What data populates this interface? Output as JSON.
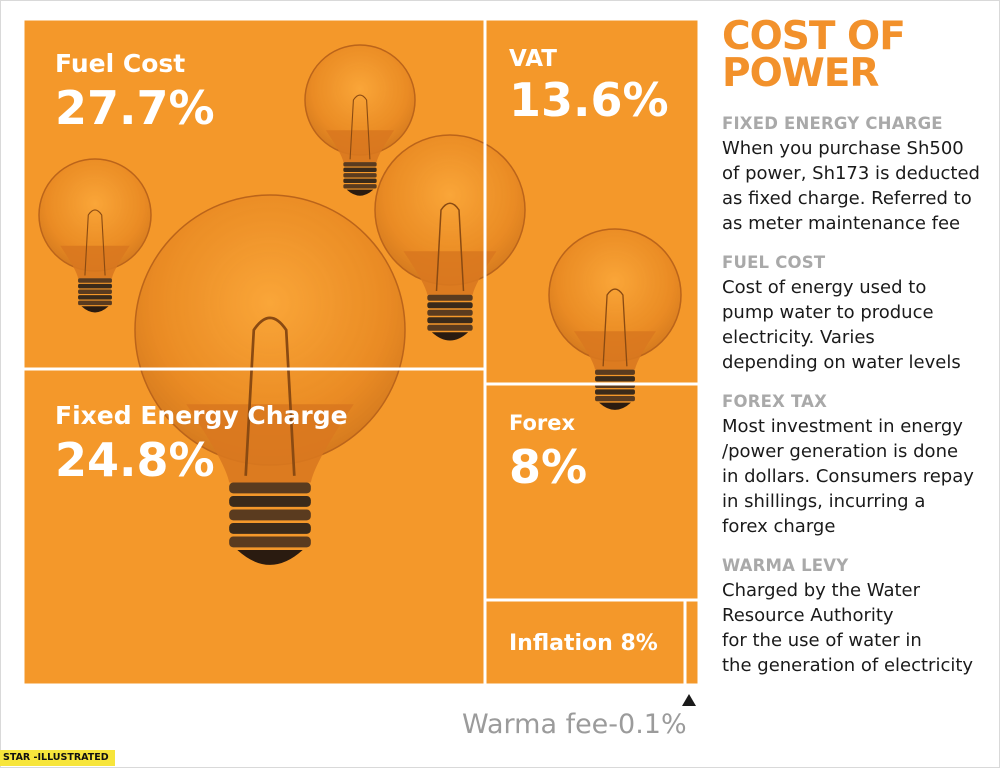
{
  "chart_data": {
    "type": "treemap",
    "title": "COST OF POWER",
    "tiles": [
      {
        "name": "Fuel Cost",
        "value_label": "27.7%",
        "value": 27.7
      },
      {
        "name": "VAT",
        "value_label": "13.6%",
        "value": 13.6
      },
      {
        "name": "Fixed Energy Charge",
        "value_label": "24.8%",
        "value": 24.8
      },
      {
        "name": "Forex",
        "value_label": "8%",
        "value": 8
      },
      {
        "name": "Inflation",
        "value_label": "8%",
        "value": 8,
        "inline_label": "Inflation 8%"
      },
      {
        "name": "Warma fee",
        "value_label": "0.1%",
        "value": 0.1
      }
    ],
    "colors": {
      "tile": "#f4982a",
      "tile_dark": "#c8691b",
      "divider": "#ffffff",
      "accent": "#f2912b"
    }
  },
  "annotations": {
    "warma_fee": "Warma fee-0.1%"
  },
  "credit": "STAR -ILLUSTRATED",
  "panel": {
    "title": "COST OF POWER",
    "sections": [
      {
        "heading": "FIXED ENERGY CHARGE",
        "body": "When you purchase Sh500\nof power, Sh173 is deducted\nas fixed charge. Referred to\nas meter maintenance fee"
      },
      {
        "heading": "FUEL COST",
        "body": "Cost of energy used to\npump water to produce\nelectricity. Varies\ndepending on water levels"
      },
      {
        "heading": "FOREX TAX",
        "body": "Most investment in energy\n/power generation is done\nin dollars. Consumers repay\nin shillings, incurring a\nforex charge"
      },
      {
        "heading": "WARMA LEVY",
        "body": "Charged by the Water\nResource Authority\nfor the use of water in\nthe generation of electricity"
      }
    ]
  }
}
